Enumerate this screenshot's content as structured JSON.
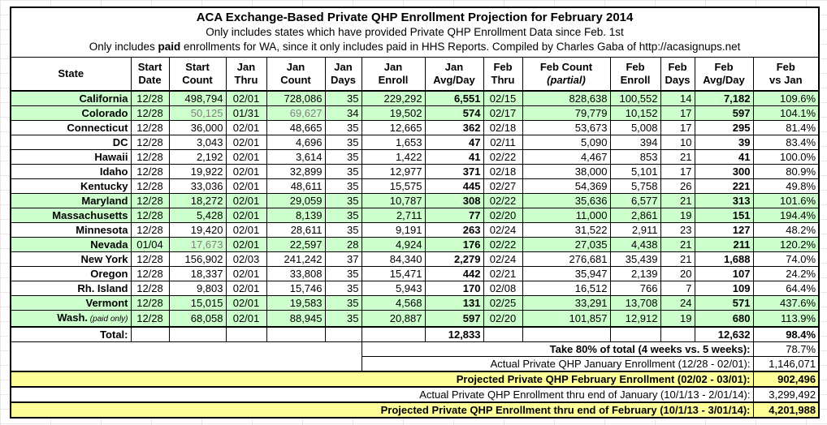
{
  "title_block": {
    "line1": "ACA Exchange-Based Private QHP Enrollment Projection for February 2014",
    "line2": "Only includes states which have provided Private QHP Enrollment Data since Feb. 1st",
    "line3_prefix": "Only includes ",
    "line3_bold": "paid",
    "line3_suffix": " enrollments for WA, since it only includes paid in HHS Reports. Compiled by Charles Gaba of http://acasignups.net"
  },
  "colors": {
    "green_row": "#ccffcc",
    "yellow_row": "#ffff99",
    "estimate_gray": "#7f7f7f"
  },
  "table": {
    "columns": [
      {
        "id": "state",
        "line1": "State",
        "line2": ""
      },
      {
        "id": "start-date",
        "line1": "Start",
        "line2": "Date"
      },
      {
        "id": "start-count",
        "line1": "Start",
        "line2": "Count"
      },
      {
        "id": "jan-thru",
        "line1": "Jan",
        "line2": "Thru"
      },
      {
        "id": "jan-count",
        "line1": "Jan",
        "line2": "Count"
      },
      {
        "id": "jan-days",
        "line1": "Jan",
        "line2": "Days"
      },
      {
        "id": "jan-enroll",
        "line1": "Jan",
        "line2": "Enroll"
      },
      {
        "id": "jan-avg-day",
        "line1": "Jan",
        "line2": "Avg/Day"
      },
      {
        "id": "feb-thru",
        "line1": "Feb",
        "line2": "Thru"
      },
      {
        "id": "feb-count",
        "line1": "Feb Count",
        "line2": "(partial)",
        "italic2": true
      },
      {
        "id": "feb-enroll",
        "line1": "Feb",
        "line2": "Enroll"
      },
      {
        "id": "feb-days",
        "line1": "Feb",
        "line2": "Days"
      },
      {
        "id": "feb-avg-day",
        "line1": "Feb",
        "line2": "Avg/Day"
      },
      {
        "id": "feb-vs-jan",
        "line1": "Feb",
        "line2": "vs Jan"
      }
    ],
    "rows": [
      {
        "state": "California",
        "note": "",
        "green": true,
        "gray": [],
        "cells": [
          "12/28",
          "498,794",
          "02/01",
          "728,086",
          "35",
          "229,292",
          "6,551",
          "02/15",
          "828,638",
          "100,552",
          "14",
          "7,182",
          "109.6%"
        ]
      },
      {
        "state": "Colorado",
        "note": "",
        "green": true,
        "gray": [
          1,
          3
        ],
        "cells": [
          "12/28",
          "50,125",
          "01/31",
          "69,627",
          "34",
          "19,502",
          "574",
          "02/17",
          "79,779",
          "10,152",
          "17",
          "597",
          "104.1%"
        ]
      },
      {
        "state": "Connecticut",
        "note": "",
        "green": false,
        "gray": [],
        "cells": [
          "12/28",
          "36,000",
          "02/01",
          "48,665",
          "35",
          "12,665",
          "362",
          "02/18",
          "53,673",
          "5,008",
          "17",
          "295",
          "81.4%"
        ]
      },
      {
        "state": "DC",
        "note": "",
        "green": false,
        "gray": [],
        "cells": [
          "12/28",
          "3,043",
          "02/01",
          "4,696",
          "35",
          "1,653",
          "47",
          "02/11",
          "5,090",
          "394",
          "10",
          "39",
          "83.4%"
        ]
      },
      {
        "state": "Hawaii",
        "note": "",
        "green": false,
        "gray": [],
        "cells": [
          "12/28",
          "2,192",
          "02/01",
          "3,614",
          "35",
          "1,422",
          "41",
          "02/22",
          "4,467",
          "853",
          "21",
          "41",
          "100.0%"
        ]
      },
      {
        "state": "Idaho",
        "note": "",
        "green": false,
        "gray": [],
        "cells": [
          "12/28",
          "19,922",
          "02/01",
          "32,899",
          "35",
          "12,977",
          "371",
          "02/18",
          "38,000",
          "5,101",
          "17",
          "300",
          "80.9%"
        ]
      },
      {
        "state": "Kentucky",
        "note": "",
        "green": false,
        "gray": [],
        "cells": [
          "12/28",
          "33,036",
          "02/01",
          "48,611",
          "35",
          "15,575",
          "445",
          "02/27",
          "54,369",
          "5,758",
          "26",
          "221",
          "49.8%"
        ]
      },
      {
        "state": "Maryland",
        "note": "",
        "green": true,
        "gray": [],
        "cells": [
          "12/28",
          "18,272",
          "02/01",
          "29,059",
          "35",
          "10,787",
          "308",
          "02/22",
          "35,636",
          "6,577",
          "21",
          "313",
          "101.6%"
        ]
      },
      {
        "state": "Massachusetts",
        "note": "",
        "green": true,
        "gray": [],
        "cells": [
          "12/28",
          "5,428",
          "02/01",
          "8,139",
          "35",
          "2,711",
          "77",
          "02/20",
          "11,000",
          "2,861",
          "19",
          "151",
          "194.4%"
        ]
      },
      {
        "state": "Minnesota",
        "note": "",
        "green": false,
        "gray": [],
        "cells": [
          "12/28",
          "19,420",
          "02/01",
          "28,611",
          "35",
          "9,191",
          "263",
          "02/24",
          "31,522",
          "2,911",
          "23",
          "127",
          "48.2%"
        ]
      },
      {
        "state": "Nevada",
        "note": "",
        "green": true,
        "gray": [
          1
        ],
        "cells": [
          "01/04",
          "17,673",
          "02/01",
          "22,597",
          "28",
          "4,924",
          "176",
          "02/22",
          "27,035",
          "4,438",
          "21",
          "211",
          "120.2%"
        ]
      },
      {
        "state": "New York",
        "note": "",
        "green": false,
        "gray": [],
        "cells": [
          "12/28",
          "156,902",
          "02/03",
          "241,242",
          "37",
          "84,340",
          "2,279",
          "02/24",
          "276,681",
          "35,439",
          "21",
          "1,688",
          "74.0%"
        ]
      },
      {
        "state": "Oregon",
        "note": "",
        "green": false,
        "gray": [],
        "cells": [
          "12/28",
          "18,337",
          "02/01",
          "33,808",
          "35",
          "15,471",
          "442",
          "02/21",
          "35,947",
          "2,139",
          "20",
          "107",
          "24.2%"
        ]
      },
      {
        "state": "Rh. Island",
        "note": "",
        "green": false,
        "gray": [],
        "cells": [
          "12/28",
          "9,803",
          "02/01",
          "15,746",
          "35",
          "5,943",
          "170",
          "02/08",
          "16,512",
          "766",
          "7",
          "109",
          "64.4%"
        ]
      },
      {
        "state": "Vermont",
        "note": "",
        "green": true,
        "gray": [],
        "cells": [
          "12/28",
          "15,015",
          "02/01",
          "19,583",
          "35",
          "4,568",
          "131",
          "02/25",
          "33,291",
          "13,708",
          "24",
          "571",
          "437.6%"
        ]
      },
      {
        "state": "Wash.",
        "note": "(paid only)",
        "green": true,
        "gray": [],
        "cells": [
          "12/28",
          "68,058",
          "02/01",
          "88,945",
          "35",
          "20,887",
          "597",
          "02/20",
          "101,857",
          "12,912",
          "19",
          "680",
          "113.9%"
        ]
      }
    ],
    "total_row": {
      "label": "Total:",
      "jan_avg": "12,833",
      "feb_avg": "12,632",
      "feb_vs_jan": "98.4%"
    },
    "summary_rows": [
      {
        "label": "Take 80% of total (4 weeks vs. 5 weeks):",
        "value": "78.7%",
        "layout": "partial",
        "bold_label": true,
        "bold_value": false,
        "bg": "white"
      },
      {
        "label": "Actual Private QHP January Enrollment (12/28 - 02/01):",
        "value": "1,146,071",
        "layout": "partial",
        "bold_label": false,
        "bold_value": false,
        "bg": "white"
      },
      {
        "label": "Projected Private QHP February Enrollment (02/02 - 03/01):",
        "value": "902,496",
        "layout": "full",
        "bold_label": true,
        "bold_value": true,
        "bg": "yellow"
      },
      {
        "label": "Actual Private QHP Enrollment thru end of January (10/1/13 - 2/01/14):",
        "value": "3,299,492",
        "layout": "full",
        "bold_label": false,
        "bold_value": false,
        "bg": "white"
      },
      {
        "label": "Projected Private QHP Enrollment thru end of February (10/1/13 - 3/01/14):",
        "value": "4,201,988",
        "layout": "full",
        "bold_label": true,
        "bold_value": true,
        "bg": "yellow"
      }
    ]
  }
}
